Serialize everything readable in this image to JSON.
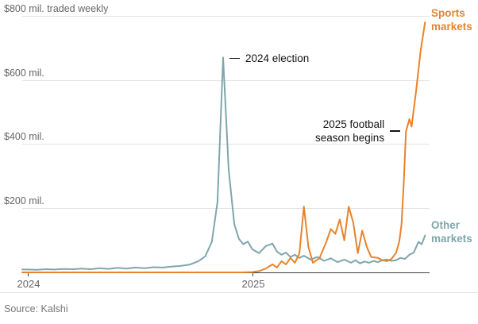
{
  "chart_data": {
    "type": "line",
    "title": "",
    "unit": "$ mil. traded weekly",
    "xlim": [
      2023.975,
      2025.79
    ],
    "ylim": [
      0,
      800
    ],
    "grid": true,
    "legend_position": "right",
    "ytick_values": [
      800,
      600,
      400,
      200
    ],
    "ytick_labels": [
      "$800 mil. traded weekly",
      "$600 mil.",
      "$400 mil.",
      "$200 mil."
    ],
    "xtick_values": [
      2024,
      2025
    ],
    "xtick_labels": [
      "2024",
      "2025"
    ],
    "series": [
      {
        "key": "sports",
        "name": "Sports markets",
        "color": "#E8832C",
        "x": [
          2023.975,
          2024.2,
          2024.4,
          2024.6,
          2024.8,
          2024.95,
          2025.0,
          2025.03,
          2025.06,
          2025.09,
          2025.11,
          2025.13,
          2025.15,
          2025.17,
          2025.19,
          2025.21,
          2025.23,
          2025.25,
          2025.27,
          2025.3,
          2025.33,
          2025.35,
          2025.37,
          2025.39,
          2025.41,
          2025.43,
          2025.45,
          2025.47,
          2025.49,
          2025.51,
          2025.53,
          2025.56,
          2025.58,
          2025.6,
          2025.62,
          2025.64,
          2025.655,
          2025.665,
          2025.675,
          2025.685,
          2025.7,
          2025.71,
          2025.73,
          2025.75,
          2025.77
        ],
        "y": [
          0,
          0,
          0,
          0,
          0,
          0,
          1,
          4,
          12,
          25,
          15,
          35,
          25,
          45,
          30,
          60,
          205,
          80,
          30,
          45,
          95,
          135,
          120,
          165,
          100,
          205,
          155,
          60,
          130,
          80,
          48,
          45,
          38,
          35,
          42,
          60,
          95,
          150,
          280,
          440,
          478,
          455,
          565,
          690,
          780
        ]
      },
      {
        "key": "other",
        "name": "Other markets",
        "color": "#7FA6AC",
        "x": [
          2023.975,
          2024.0,
          2024.04,
          2024.08,
          2024.12,
          2024.16,
          2024.2,
          2024.24,
          2024.28,
          2024.32,
          2024.36,
          2024.4,
          2024.44,
          2024.48,
          2024.52,
          2024.56,
          2024.6,
          2024.64,
          2024.68,
          2024.72,
          2024.76,
          2024.79,
          2024.82,
          2024.845,
          2024.87,
          2024.895,
          2024.92,
          2024.94,
          2024.96,
          2024.98,
          2025.0,
          2025.03,
          2025.06,
          2025.09,
          2025.11,
          2025.13,
          2025.15,
          2025.17,
          2025.19,
          2025.21,
          2025.23,
          2025.26,
          2025.29,
          2025.32,
          2025.35,
          2025.38,
          2025.41,
          2025.44,
          2025.46,
          2025.48,
          2025.5,
          2025.52,
          2025.54,
          2025.56,
          2025.58,
          2025.6,
          2025.62,
          2025.64,
          2025.66,
          2025.68,
          2025.7,
          2025.72,
          2025.74,
          2025.755,
          2025.77
        ],
        "y": [
          9,
          9,
          8,
          10,
          9,
          11,
          10,
          12,
          10,
          13,
          11,
          14,
          12,
          15,
          13,
          16,
          15,
          18,
          20,
          24,
          35,
          50,
          95,
          220,
          670,
          320,
          150,
          105,
          88,
          96,
          72,
          60,
          82,
          90,
          65,
          55,
          62,
          48,
          55,
          45,
          52,
          40,
          48,
          36,
          44,
          32,
          40,
          30,
          38,
          28,
          34,
          30,
          36,
          32,
          38,
          40,
          36,
          38,
          45,
          42,
          55,
          62,
          95,
          88,
          115
        ]
      }
    ],
    "annotations": [
      {
        "key": "election",
        "label": "2024 election",
        "x": 2024.87,
        "y": 670
      },
      {
        "key": "football",
        "label": "2025 football season begins",
        "lines": [
          "2025 football",
          "season begins"
        ],
        "x": 2025.69,
        "y": 440
      }
    ]
  },
  "footer": {
    "source": "Source: Kalshi"
  }
}
